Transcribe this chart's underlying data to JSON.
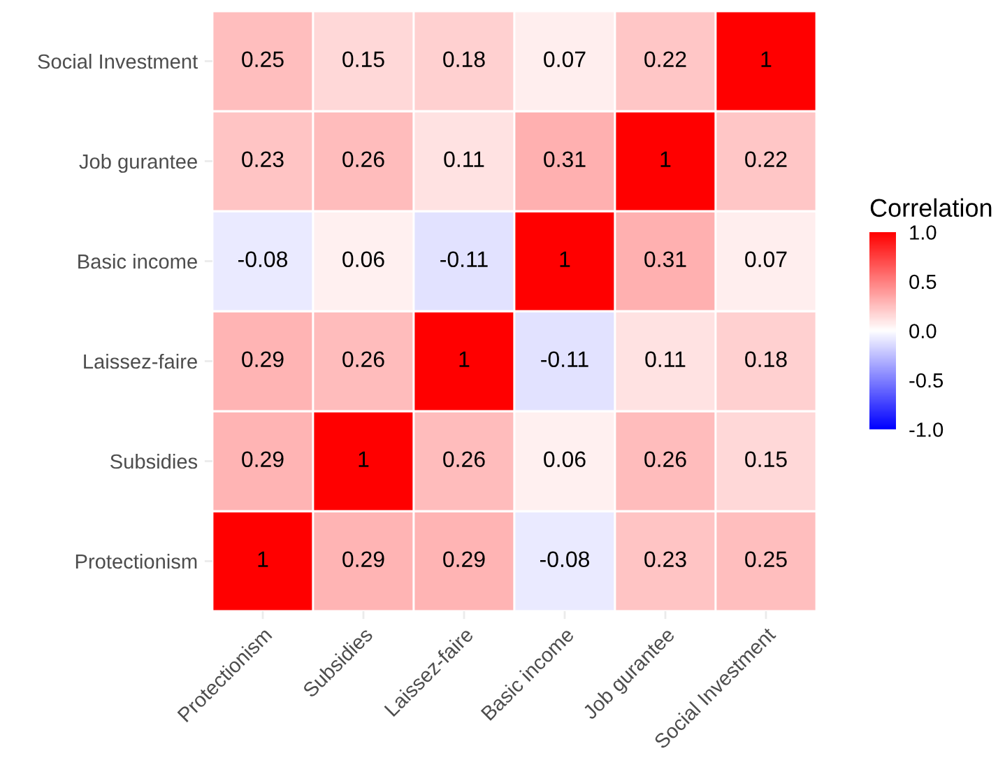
{
  "chart_data": {
    "type": "heatmap",
    "legend_title": "Correlation",
    "categories": [
      "Protectionism",
      "Subsidies",
      "Laissez-faire",
      "Basic income",
      "Job gurantee",
      "Social Investment"
    ],
    "y_categories": [
      "Social Investment",
      "Job gurantee",
      "Basic income",
      "Laissez-faire",
      "Subsidies",
      "Protectionism"
    ],
    "cells": [
      [
        0.25,
        0.15,
        0.18,
        0.07,
        0.22,
        1
      ],
      [
        0.23,
        0.26,
        0.11,
        0.31,
        1,
        0.22
      ],
      [
        -0.08,
        0.06,
        -0.11,
        1,
        0.31,
        0.07
      ],
      [
        0.29,
        0.26,
        1,
        -0.11,
        0.11,
        0.18
      ],
      [
        0.29,
        1,
        0.26,
        0.06,
        0.26,
        0.15
      ],
      [
        1,
        0.29,
        0.29,
        -0.08,
        0.23,
        0.25
      ]
    ],
    "colors": [
      "#0000ff",
      "#ffffff",
      "#ff0000"
    ],
    "clim": [
      -1,
      1
    ],
    "cticks": [
      {
        "value": 1,
        "label": "1.0"
      },
      {
        "value": 0.5,
        "label": "0.5"
      },
      {
        "value": 0,
        "label": "0.0"
      },
      {
        "value": -0.5,
        "label": "-0.5"
      },
      {
        "value": -1,
        "label": "-1.0"
      }
    ],
    "data_labels": true
  }
}
